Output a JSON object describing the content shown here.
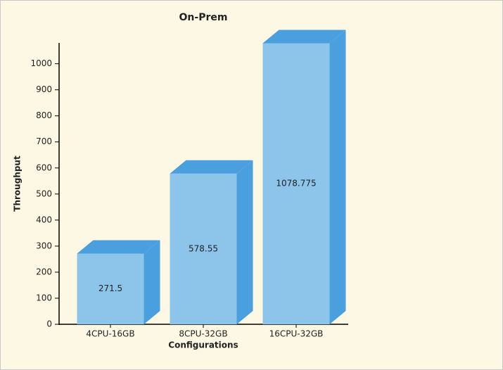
{
  "chart_data": {
    "type": "bar3d",
    "title": "On-Prem",
    "x_label": "Configurations",
    "y_label": "Throughput",
    "categories": [
      "4CPU-16GB",
      "8CPU-32GB",
      "16CPU-32GB"
    ],
    "values": [
      271.5,
      578.55,
      1078.775
    ],
    "color": "#8cc4ea",
    "side_color": "#4a9fde",
    "ylim": [
      0,
      1080
    ],
    "yticks": [
      0,
      100,
      200,
      300,
      400,
      500,
      600,
      700,
      800,
      900,
      1000
    ]
  }
}
